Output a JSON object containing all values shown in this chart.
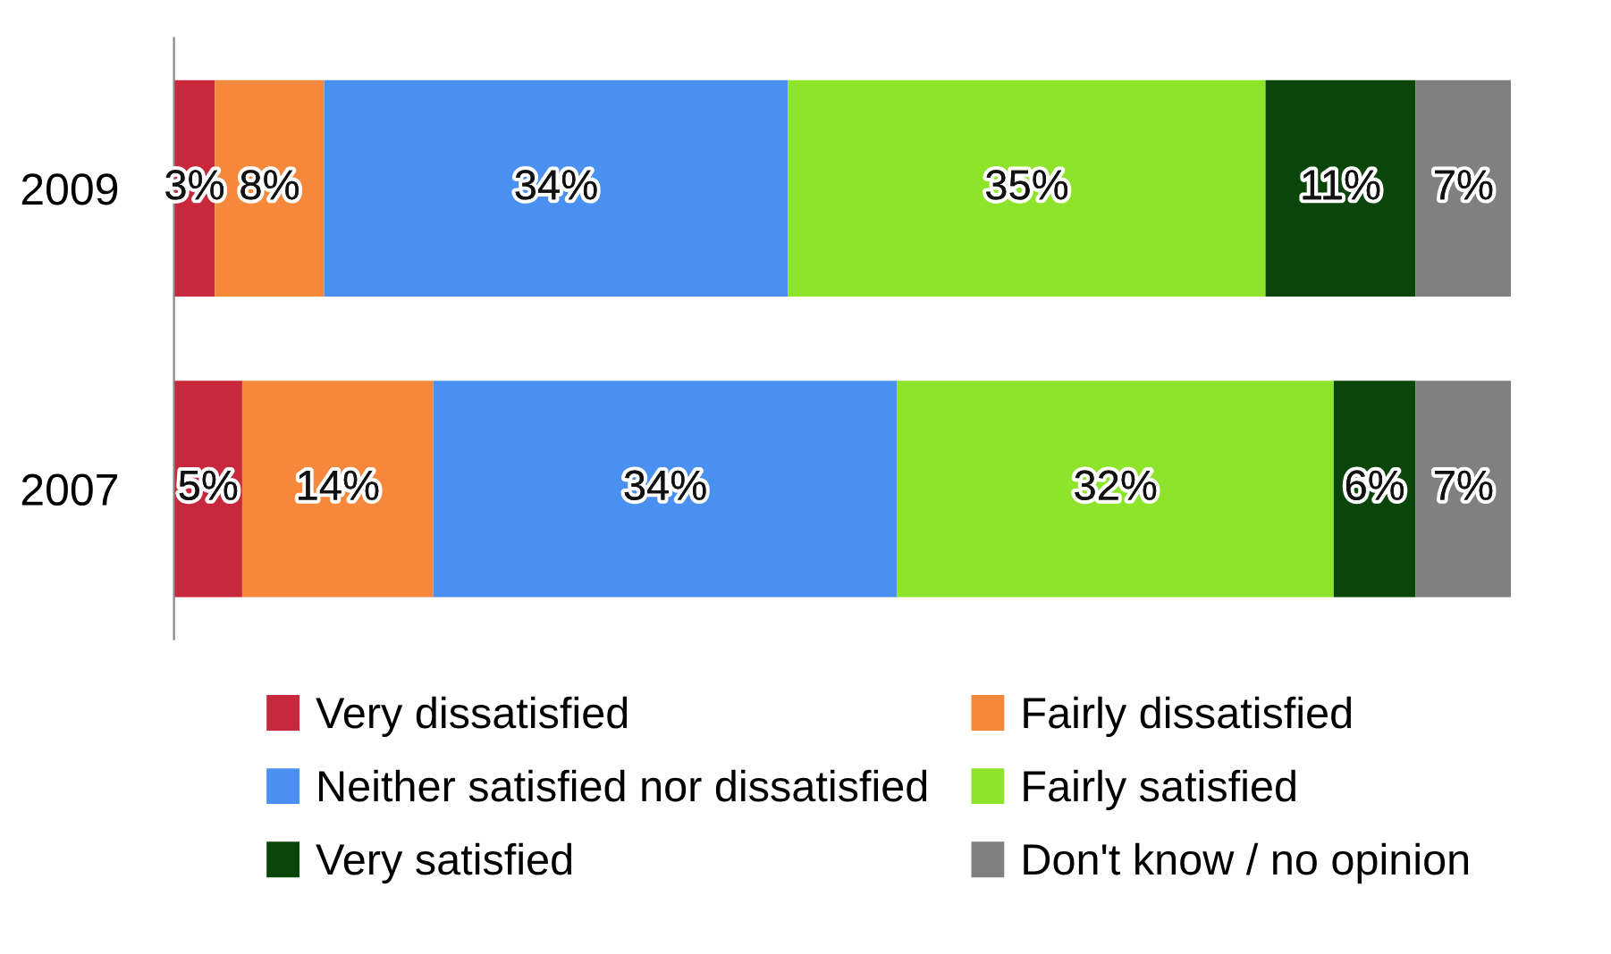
{
  "chart_data": {
    "type": "bar",
    "orientation": "horizontal",
    "stacked": true,
    "categories": [
      "2009",
      "2007"
    ],
    "tick_labels": "y",
    "grid": false,
    "legend": "bottom",
    "series": [
      {
        "name": "Very dissatisfied",
        "color": "#c8283c",
        "values": [
          3,
          5
        ],
        "value_labels": [
          "3%",
          "5%"
        ]
      },
      {
        "name": "Fairly dissatisfied",
        "color": "#f5883a",
        "values": [
          8,
          14
        ],
        "value_labels": [
          "8%",
          "14%"
        ]
      },
      {
        "name": "Neither satisfied nor dissatisfied",
        "color": "#4a90f0",
        "values": [
          34,
          34
        ],
        "value_labels": [
          "34%",
          "34%"
        ]
      },
      {
        "name": "Fairly satisfied",
        "color": "#8ee42a",
        "values": [
          35,
          32
        ],
        "value_labels": [
          "35%",
          "32%"
        ]
      },
      {
        "name": "Very satisfied",
        "color": "#0a460a",
        "values": [
          11,
          6
        ],
        "value_labels": [
          "11%",
          "6%"
        ]
      },
      {
        "name": "Don't know / no opinion",
        "color": "#808080",
        "values": [
          7,
          7
        ],
        "value_labels": [
          "7%",
          "7%"
        ]
      }
    ]
  }
}
